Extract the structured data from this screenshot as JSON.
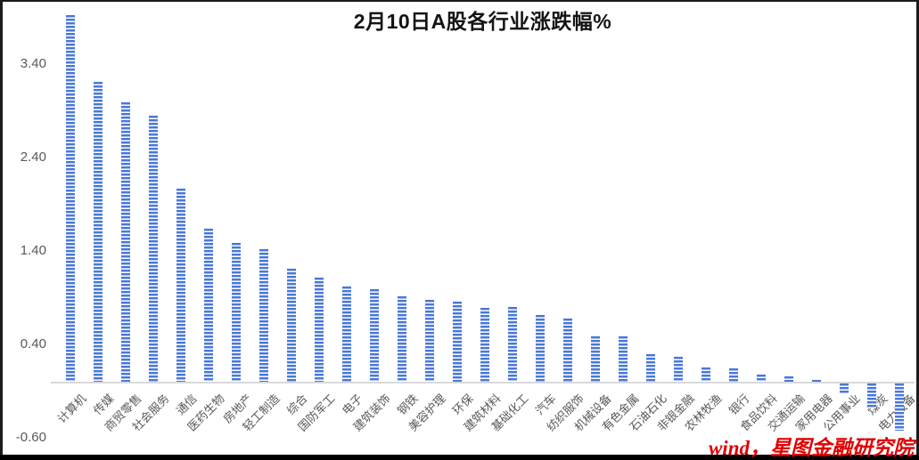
{
  "title": "2月10日A股各行业涨跌幅%",
  "source": "wind，星图金融研究院",
  "colors": {
    "bar_blue": "#4a78d8",
    "axis_line": "#d9d9d9",
    "tick_text": "#595959",
    "title_text": "#141414",
    "source_red": "#e10000"
  },
  "y_axis": {
    "ticks": [
      "3.40",
      "2.40",
      "1.40",
      "0.40",
      "-0.60"
    ]
  },
  "chart_data": {
    "type": "bar",
    "title": "2月10日A股各行业涨跌幅%",
    "xlabel": "",
    "ylabel": "",
    "ylim": [
      -0.6,
      4.0
    ],
    "grid": false,
    "legend": false,
    "bar_pattern": "horizontal-stripes",
    "categories": [
      "计算机",
      "传媒",
      "商贸零售",
      "社会服务",
      "通信",
      "医药生物",
      "房地产",
      "轻工制造",
      "综合",
      "国防军工",
      "电子",
      "建筑装饰",
      "钢铁",
      "美容护理",
      "环保",
      "建筑材料",
      "基础化工",
      "汽车",
      "纺织服饰",
      "机械设备",
      "有色金属",
      "石油石化",
      "非银金融",
      "农林牧渔",
      "银行",
      "食品饮料",
      "交通运输",
      "家用电器",
      "公用事业",
      "煤炭",
      "电力设备"
    ],
    "values": [
      3.92,
      3.21,
      2.99,
      2.85,
      2.07,
      1.64,
      1.49,
      1.42,
      1.21,
      1.11,
      1.02,
      0.99,
      0.91,
      0.88,
      0.86,
      0.79,
      0.8,
      0.71,
      0.68,
      0.49,
      0.49,
      0.3,
      0.27,
      0.15,
      0.14,
      0.08,
      0.06,
      0.02,
      -0.13,
      -0.29,
      -0.52
    ]
  }
}
